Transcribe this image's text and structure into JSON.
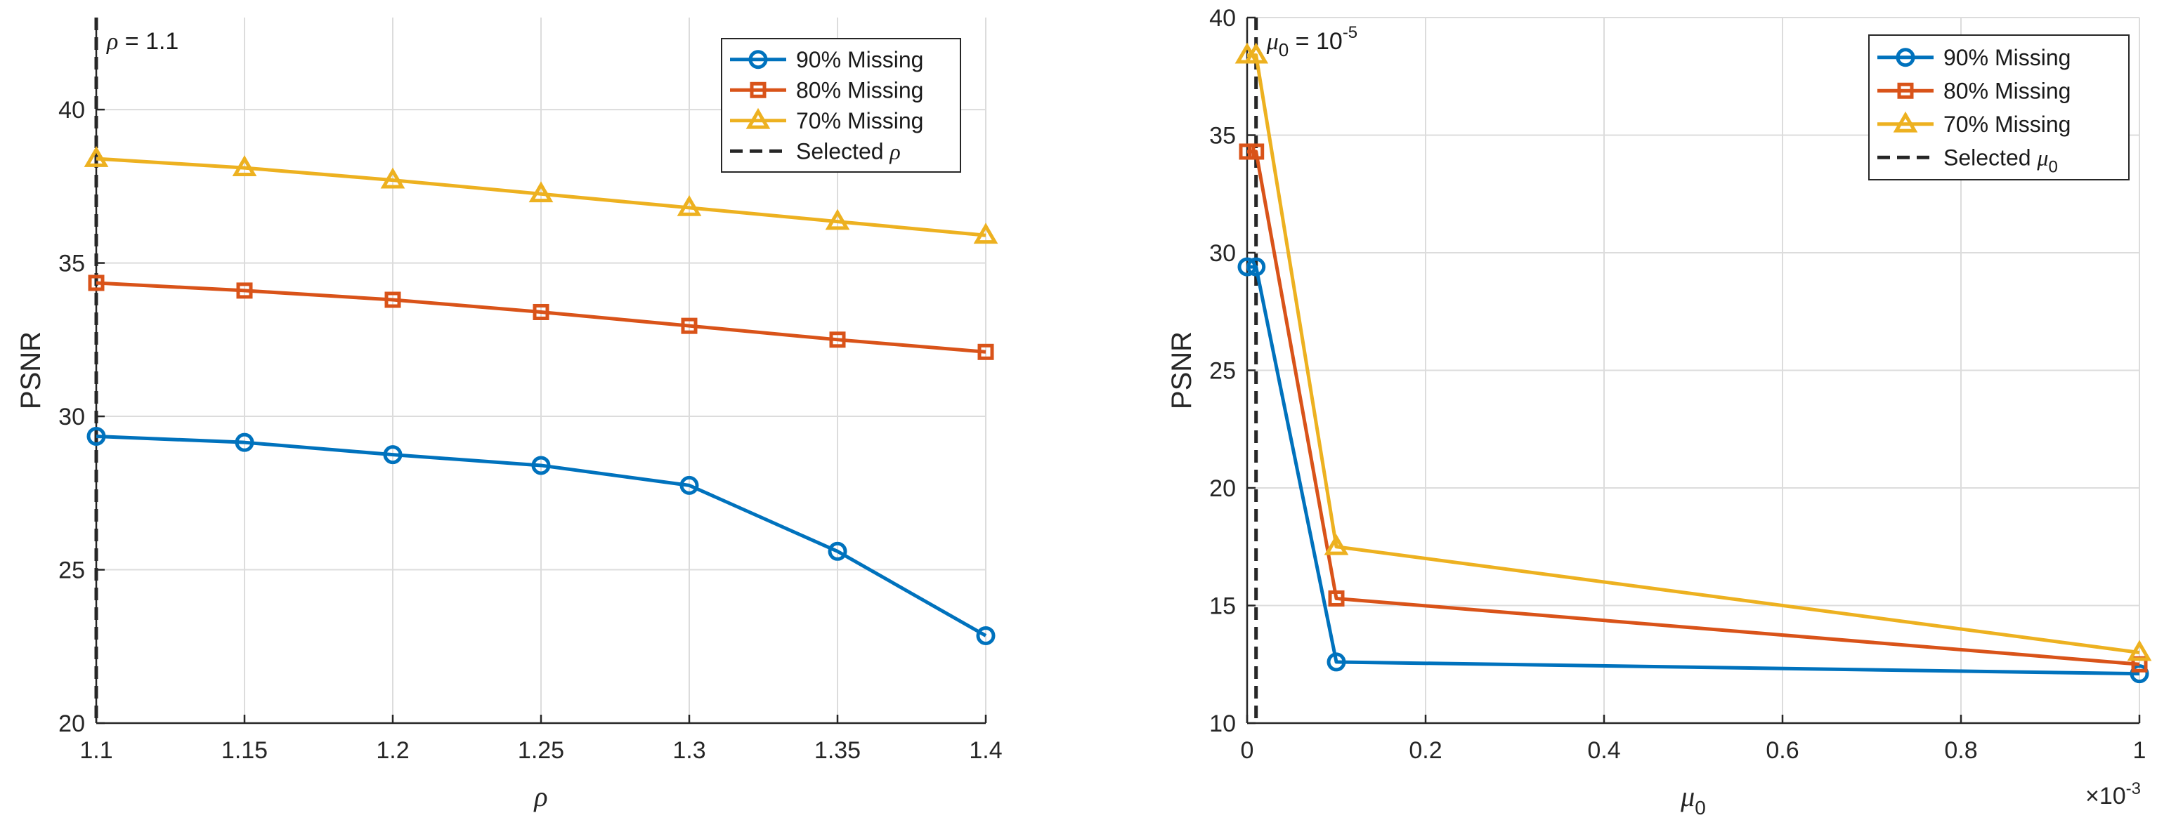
{
  "chart_data": [
    {
      "type": "line",
      "title": "",
      "xlabel": "ρ",
      "ylabel": "PSNR",
      "xlim": [
        1.1,
        1.4
      ],
      "ylim": [
        20,
        43
      ],
      "xticks": [
        "1.1",
        "1.15",
        "1.2",
        "1.25",
        "1.3",
        "1.35",
        "1.4"
      ],
      "yticks": [
        "20",
        "25",
        "30",
        "35",
        "40"
      ],
      "grid": true,
      "legend_position": "top-right",
      "x": [
        1.1,
        1.15,
        1.2,
        1.25,
        1.3,
        1.35,
        1.4
      ],
      "series": [
        {
          "name": "90% Missing",
          "color": "#0072BD",
          "marker": "circle",
          "values": [
            29.35,
            29.15,
            28.75,
            28.4,
            27.75,
            25.6,
            22.85
          ]
        },
        {
          "name": "80% Missing",
          "color": "#D95319",
          "marker": "square",
          "values": [
            34.35,
            34.1,
            33.8,
            33.4,
            32.95,
            32.5,
            32.1
          ]
        },
        {
          "name": "70% Missing",
          "color": "#EDB120",
          "marker": "triangle",
          "values": [
            38.4,
            38.1,
            37.7,
            37.25,
            36.8,
            36.35,
            35.9
          ]
        }
      ],
      "selected": {
        "legend": "Selected ρ",
        "x": 1.1,
        "annotation": "ρ = 1.1",
        "color": "#262626"
      }
    },
    {
      "type": "line",
      "title": "",
      "xlabel": "μ0",
      "xlabel_symbol": "μ",
      "xlabel_subscript": "0",
      "x_exponent": "×10-3",
      "ylabel": "PSNR",
      "xlim": [
        0,
        1
      ],
      "ylim": [
        10,
        40
      ],
      "xticks": [
        "0",
        "0.2",
        "0.4",
        "0.6",
        "0.8",
        "1"
      ],
      "yticks": [
        "10",
        "15",
        "20",
        "25",
        "30",
        "35",
        "40"
      ],
      "grid": true,
      "legend_position": "top-right",
      "x": [
        1e-05,
        0.01,
        0.1,
        1
      ],
      "series": [
        {
          "name": "90% Missing",
          "color": "#0072BD",
          "marker": "circle",
          "values": [
            29.4,
            29.4,
            12.6,
            12.1
          ]
        },
        {
          "name": "80% Missing",
          "color": "#D95319",
          "marker": "square",
          "values": [
            34.3,
            34.3,
            15.3,
            12.5
          ]
        },
        {
          "name": "70% Missing",
          "color": "#EDB120",
          "marker": "triangle",
          "values": [
            38.4,
            38.4,
            17.5,
            13.0
          ]
        }
      ],
      "selected": {
        "legend": "Selected μ0",
        "x": 0.01,
        "annotation": "μ0 = 10-5",
        "color": "#262626"
      }
    }
  ]
}
